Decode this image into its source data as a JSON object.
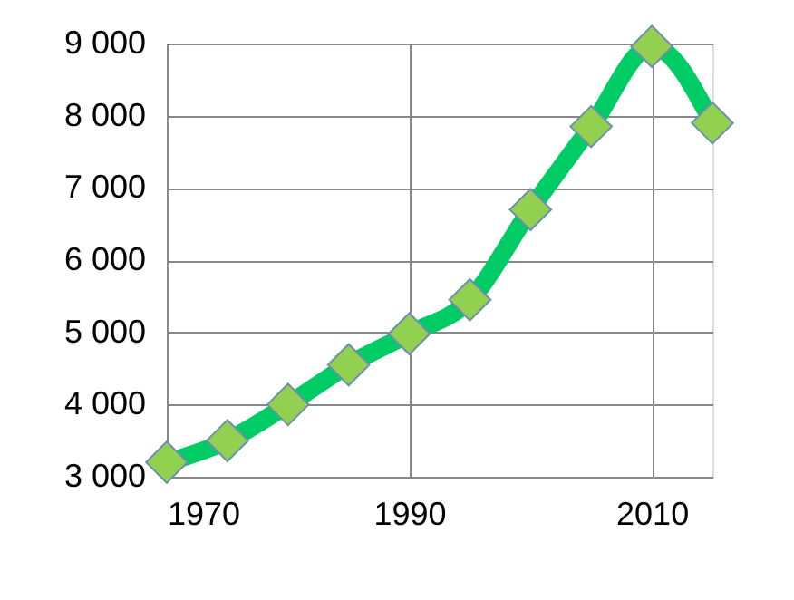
{
  "chart_data": {
    "type": "line",
    "x": [
      1970,
      1975,
      1980,
      1985,
      1990,
      1995,
      2000,
      2005,
      2010,
      2015
    ],
    "series": [
      {
        "color": "#00cc66",
        "values": [
          3200,
          3500,
          4000,
          4550,
          4980,
          5450,
          6700,
          7850,
          8960,
          7900
        ]
      }
    ],
    "xlim": [
      1970,
      2015
    ],
    "xticks": [
      1970,
      1990,
      2010
    ],
    "ylim": [
      3000,
      9000
    ],
    "yticks": [
      3000,
      4000,
      5000,
      6000,
      7000,
      8000,
      9000
    ],
    "grid": true,
    "marker": "diamond",
    "line_style": "solid"
  }
}
